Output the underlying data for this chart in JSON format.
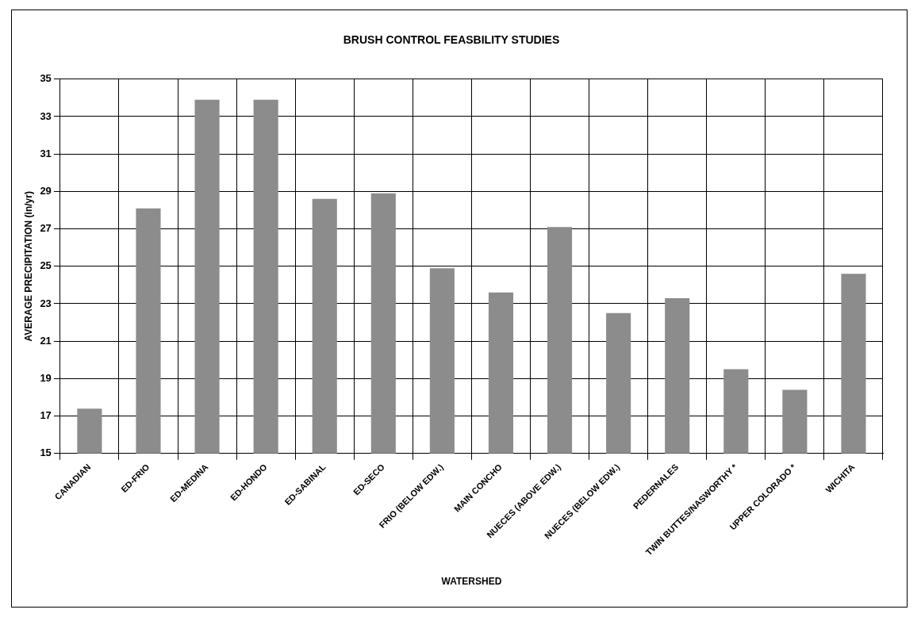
{
  "chart_data": {
    "type": "bar",
    "title": "BRUSH CONTROL FEASBILITY STUDIES",
    "xlabel": "WATERSHED",
    "ylabel": "AVERAGE PRECIPITATION (in/yr)",
    "categories": [
      "CANADIAN",
      "ED-FRIO",
      "ED-MEDINA",
      "ED-HONDO",
      "ED-SABINAL",
      "ED-SECO",
      "FRIO (BELOW EDW.)",
      "MAIN CONCHO",
      "NUECES (ABOVE EDW.)",
      "NUECES (BELOW EDW.)",
      "PEDERNALES",
      "TWIN BUTTES/NASWORTHY *",
      "UPPER COLORADO *",
      "WICHITA"
    ],
    "values": [
      17.4,
      28.1,
      33.9,
      33.9,
      28.6,
      28.9,
      24.9,
      23.6,
      27.1,
      22.5,
      23.3,
      19.5,
      18.4,
      24.6
    ],
    "color": "#8c8c8c",
    "ylim": [
      15,
      35
    ],
    "yticks": [
      15,
      17,
      19,
      21,
      23,
      25,
      27,
      29,
      31,
      33,
      35
    ],
    "grid": true
  }
}
